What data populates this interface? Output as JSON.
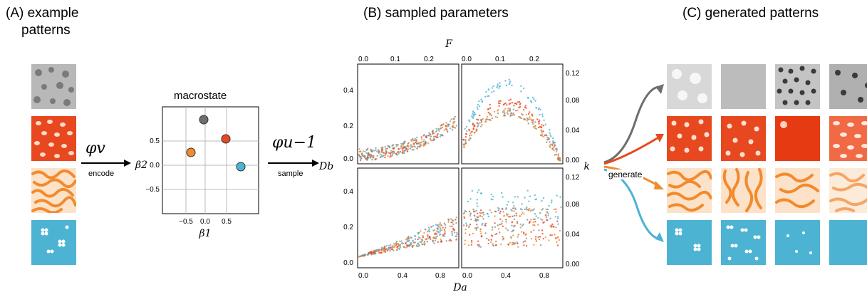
{
  "headings": {
    "a_line1": "(A) example",
    "a_line2": "patterns",
    "b": "(B) sampled parameters",
    "c": "(C) generated patterns"
  },
  "arrows": {
    "encode_symbol": "φv",
    "encode_label": "encode",
    "sample_symbol": "φu−1",
    "sample_label": "sample",
    "generate_label": "generate"
  },
  "macrostate": {
    "title": "macrostate",
    "xlabel": "β1",
    "ylabel": "β2",
    "xticks": [
      "−0.5",
      "0.0",
      "0.5"
    ],
    "yticks": [
      "0.5",
      "0.0",
      "−0.5"
    ],
    "points": [
      {
        "color": "#6e6e6e",
        "x": -0.05,
        "y": 0.9
      },
      {
        "color": "#e8481f",
        "x": 0.3,
        "y": 0.5
      },
      {
        "color": "#f28a2e",
        "x": -0.35,
        "y": 0.25
      },
      {
        "color": "#4db3d3",
        "x": 0.6,
        "y": 0.0
      }
    ]
  },
  "colors": {
    "gray": "#8c8c8c",
    "red": "#e8481f",
    "orange": "#f28a2e",
    "blue": "#4db3d3"
  },
  "sampled": {
    "top_axis_label": "F",
    "bottom_axis_label": "Da",
    "left_axis_label": "Db",
    "right_axis_label": "k",
    "top_ticks": [
      "0.0",
      "0.1",
      "0.2"
    ],
    "bottom_ticks": [
      "0.0",
      "0.4",
      "0.8"
    ],
    "left_ticks": [
      "0.4",
      "0.2",
      "0.0"
    ],
    "right_ticks": [
      "0.12",
      "0.08",
      "0.04",
      "0.00"
    ]
  }
}
